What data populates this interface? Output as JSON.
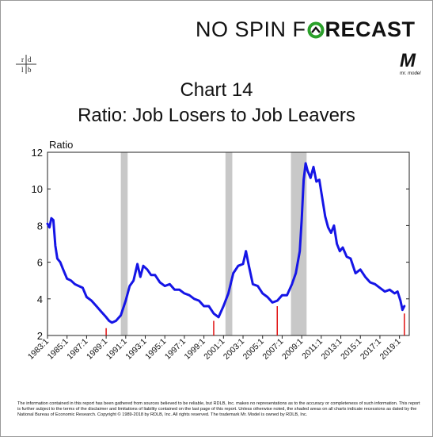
{
  "header": {
    "brand_part1": "NO SPIN F",
    "brand_part2": "RECAST",
    "logo_left": "rdlb",
    "logo_right_caption": "mr. model"
  },
  "title_line1": "Chart 14",
  "title_line2": "Ratio: Job Losers to Job Leavers",
  "footer_text": "The information contained in this report has been gathered from sources believed to be reliable, but RDLB, Inc. makes no representations as to the accuracy or completeness of such information. This report is further subject to the terms of the disclaimer and limitations of liability contained on the last page of this report. Unless otherwise noted, the shaded areas on all charts indicate recessions as dated by the National Bureau of Economic Research. Copyright © 1989-2018 by RDLB, Inc. All rights reserved. The trademark Mr. Model is owned by RDLB, Inc.",
  "colors": {
    "series": "#1515e6",
    "recession": "#c8c8c8",
    "trough_marker": "#e01010",
    "brand_accent": "#2aa02a"
  },
  "chart_data": {
    "type": "line",
    "title": "Chart 14",
    "subtitle": "Ratio: Job Losers to Job Leavers",
    "ylabel": "Ratio",
    "xlabel": "",
    "ylim": [
      2,
      12
    ],
    "yticks": [
      2,
      4,
      6,
      8,
      10,
      12
    ],
    "xlim": [
      1983.0,
      2020.0
    ],
    "xticks": [
      "1983:1",
      "1985:1",
      "1987:1",
      "1989:1",
      "1991:1",
      "1993:1",
      "1995:1",
      "1997:1",
      "1999:1",
      "2001:1",
      "2003:1",
      "2005:1",
      "2007:1",
      "2009:1",
      "2011:1",
      "2013:1",
      "2015:1",
      "2017:1",
      "2019:1"
    ],
    "grid": false,
    "legend": "none",
    "recessions": [
      [
        1990.5,
        1991.2
      ],
      [
        2001.2,
        2001.9
      ],
      [
        2007.9,
        2009.5
      ]
    ],
    "trough_markers": [
      {
        "x": 1989.0,
        "y": 2.4
      },
      {
        "x": 2000.0,
        "y": 2.8
      },
      {
        "x": 2006.5,
        "y": 3.6
      },
      {
        "x": 2019.5,
        "y": 3.2
      }
    ],
    "series": [
      {
        "name": "",
        "x": [
          1983.0,
          1983.2,
          1983.4,
          1983.6,
          1983.8,
          1984.0,
          1984.3,
          1984.6,
          1985.0,
          1985.4,
          1985.8,
          1986.2,
          1986.6,
          1987.0,
          1987.5,
          1988.0,
          1988.5,
          1989.0,
          1989.3,
          1989.6,
          1990.0,
          1990.5,
          1991.0,
          1991.4,
          1991.8,
          1992.2,
          1992.5,
          1992.8,
          1993.2,
          1993.6,
          1994.0,
          1994.5,
          1995.0,
          1995.5,
          1996.0,
          1996.5,
          1997.0,
          1997.5,
          1998.0,
          1998.5,
          1999.0,
          1999.5,
          2000.0,
          2000.5,
          2001.0,
          2001.5,
          2002.0,
          2002.5,
          2003.0,
          2003.3,
          2003.6,
          2004.0,
          2004.5,
          2005.0,
          2005.5,
          2006.0,
          2006.5,
          2007.0,
          2007.5,
          2008.0,
          2008.4,
          2008.8,
          2009.0,
          2009.2,
          2009.4,
          2009.6,
          2009.9,
          2010.2,
          2010.5,
          2010.8,
          2011.1,
          2011.4,
          2011.7,
          2012.0,
          2012.3,
          2012.6,
          2012.9,
          2013.2,
          2013.6,
          2014.0,
          2014.5,
          2015.0,
          2015.5,
          2016.0,
          2016.5,
          2017.0,
          2017.5,
          2018.0,
          2018.5,
          2018.8,
          2019.1,
          2019.3,
          2019.5
        ],
        "values": [
          8.1,
          7.9,
          8.4,
          8.3,
          6.9,
          6.2,
          6.0,
          5.6,
          5.1,
          5.0,
          4.8,
          4.7,
          4.6,
          4.1,
          3.9,
          3.6,
          3.3,
          3.0,
          2.8,
          2.7,
          2.8,
          3.1,
          3.9,
          4.7,
          5.0,
          5.9,
          5.2,
          5.8,
          5.6,
          5.3,
          5.3,
          4.9,
          4.7,
          4.8,
          4.5,
          4.5,
          4.3,
          4.2,
          4.0,
          3.9,
          3.6,
          3.6,
          3.2,
          3.0,
          3.6,
          4.3,
          5.4,
          5.8,
          5.9,
          6.6,
          5.8,
          4.8,
          4.7,
          4.3,
          4.1,
          3.8,
          3.9,
          4.2,
          4.2,
          4.8,
          5.4,
          6.6,
          8.3,
          10.5,
          11.4,
          11.0,
          10.6,
          11.2,
          10.4,
          10.5,
          9.5,
          8.5,
          7.9,
          7.6,
          8.0,
          7.0,
          6.6,
          6.8,
          6.3,
          6.2,
          5.4,
          5.6,
          5.2,
          4.9,
          4.8,
          4.6,
          4.4,
          4.5,
          4.3,
          4.4,
          3.9,
          3.4,
          3.6
        ]
      }
    ]
  }
}
